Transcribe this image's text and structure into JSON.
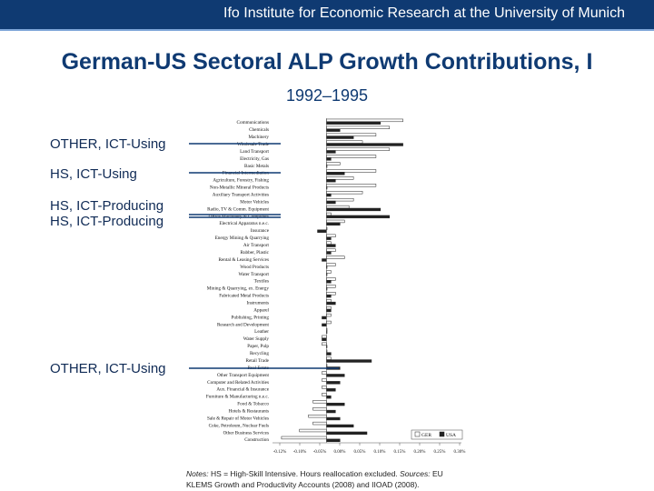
{
  "header": {
    "org": "Ifo Institute for Economic Research at the University of Munich"
  },
  "title": "German-US Sectoral ALP Growth Contributions, I",
  "subtitle": "1992–1995",
  "group_labels": [
    "OTHER, ICT-Using",
    "HS, ICT-Using",
    "HS, ICT-Producing",
    "HS, ICT-Producing",
    "OTHER, ICT-Using"
  ],
  "note": {
    "prefix": "Notes:",
    "text": " HS = High-Skill Intensive. Hours reallocation excluded. ",
    "sources_label": "Sources:",
    "sources": " EU KLEMS Growth and Productivity Accounts (2008) and IIOAD (2008)."
  },
  "colors": {
    "brand": "#0f3a72",
    "ger": "#ffffff",
    "usa": "#222222"
  },
  "chart_data": {
    "type": "bar",
    "orientation": "horizontal",
    "categories": [
      "Communications",
      "Chemicals",
      "Machinery",
      "Wholesale Trade",
      "Land Transport",
      "Electricity, Gas",
      "Basic Metals",
      "Financial Intermediation",
      "Agriculture, Forestry, Fishing",
      "Non-Metallic Mineral Products",
      "Auxiliary Transport Activities",
      "Motor Vehicles",
      "Radio, TV & Comm. Equipment",
      "Office Machinery & Computers",
      "Electrical Apparatus n.e.c.",
      "Insurance",
      "Energy Mining & Quarrying",
      "Air Transport",
      "Rubber, Plastic",
      "Rental & Leasing Services",
      "Wood Products",
      "Water Transport",
      "Textiles",
      "Mining & Quarrying, ex. Energy",
      "Fabricated Metal Products",
      "Instruments",
      "Apparel",
      "Publishing, Printing",
      "Research and Development",
      "Leather",
      "Water Supply",
      "Paper, Pulp",
      "Recycling",
      "Retail Trade",
      "Real Estate",
      "Other Transport Equipment",
      "Computer and Related Activities",
      "Aux. Financial & Insurance",
      "Furniture & Manufacturing n.e.c.",
      "Food & Tobacco",
      "Hotels & Restaurants",
      "Sale & Repair of Motor Vehicles",
      "Coke, Petroleum, Nuclear Fuels",
      "Other Business Services",
      "Construction"
    ],
    "series": [
      {
        "name": "GER",
        "values": [
          0.17,
          0.14,
          0.11,
          0.08,
          0.14,
          0.11,
          0.03,
          0.11,
          0.06,
          0.11,
          0.08,
          0.06,
          0.05,
          0.01,
          0.04,
          0.0,
          0.02,
          0.01,
          0.02,
          0.04,
          0.02,
          0.01,
          0.02,
          0.02,
          0.02,
          0.01,
          0.01,
          0.01,
          0.01,
          0.0,
          -0.01,
          -0.01,
          0.0,
          0.01,
          0.0,
          -0.01,
          -0.01,
          -0.01,
          -0.01,
          -0.03,
          -0.03,
          -0.04,
          -0.03,
          -0.06,
          -0.1
        ]
      },
      {
        "name": "USA",
        "values": [
          0.12,
          0.03,
          0.06,
          0.17,
          0.02,
          0.01,
          0.0,
          0.04,
          0.02,
          0.0,
          0.01,
          0.02,
          0.12,
          0.14,
          0.03,
          -0.02,
          0.01,
          0.02,
          0.01,
          -0.01,
          0.0,
          0.0,
          0.01,
          0.0,
          0.01,
          0.02,
          0.01,
          -0.01,
          -0.01,
          0.0,
          -0.01,
          0.0,
          0.01,
          0.1,
          0.03,
          0.04,
          0.03,
          0.02,
          0.01,
          0.04,
          0.02,
          0.03,
          0.06,
          0.09,
          0.03
        ]
      }
    ],
    "xticks": [
      "-0.12%",
      "-0.10%",
      "-0.05%",
      "0.00%",
      "0.05%",
      "0.10%",
      "0.15%",
      "0.20%",
      "0.25%",
      "0.30%"
    ],
    "xlim": [
      -0.12,
      0.3
    ],
    "legend": {
      "items": [
        "GER",
        "USA"
      ],
      "placement": "bottom-right"
    },
    "grid": false
  }
}
